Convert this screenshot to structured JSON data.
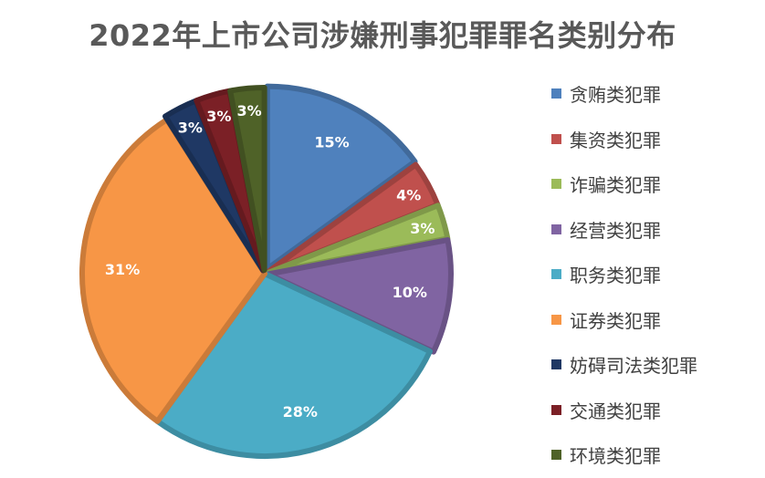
{
  "chart_data": {
    "type": "pie",
    "title": "2022年上市公司涉嫌刑事犯罪罪名类别分布",
    "legend_position": "right",
    "categories": [
      "贪贿类犯罪",
      "集资类犯罪",
      "诈骗类犯罪",
      "经营类犯罪",
      "职务类犯罪",
      "证券类犯罪",
      "妨碍司法类犯罪",
      "交通类犯罪",
      "环境类犯罪"
    ],
    "values": [
      15,
      4,
      3,
      10,
      28,
      31,
      3,
      3,
      3
    ],
    "labels": [
      "15%",
      "4%",
      "3%",
      "10%",
      "28%",
      "31%",
      "3%",
      "3%",
      "3%"
    ],
    "colors": [
      "#4F81BD",
      "#C0504D",
      "#9BBB59",
      "#8064A2",
      "#4BACC6",
      "#F79646",
      "#1F3864",
      "#7B2026",
      "#4F6228"
    ]
  }
}
